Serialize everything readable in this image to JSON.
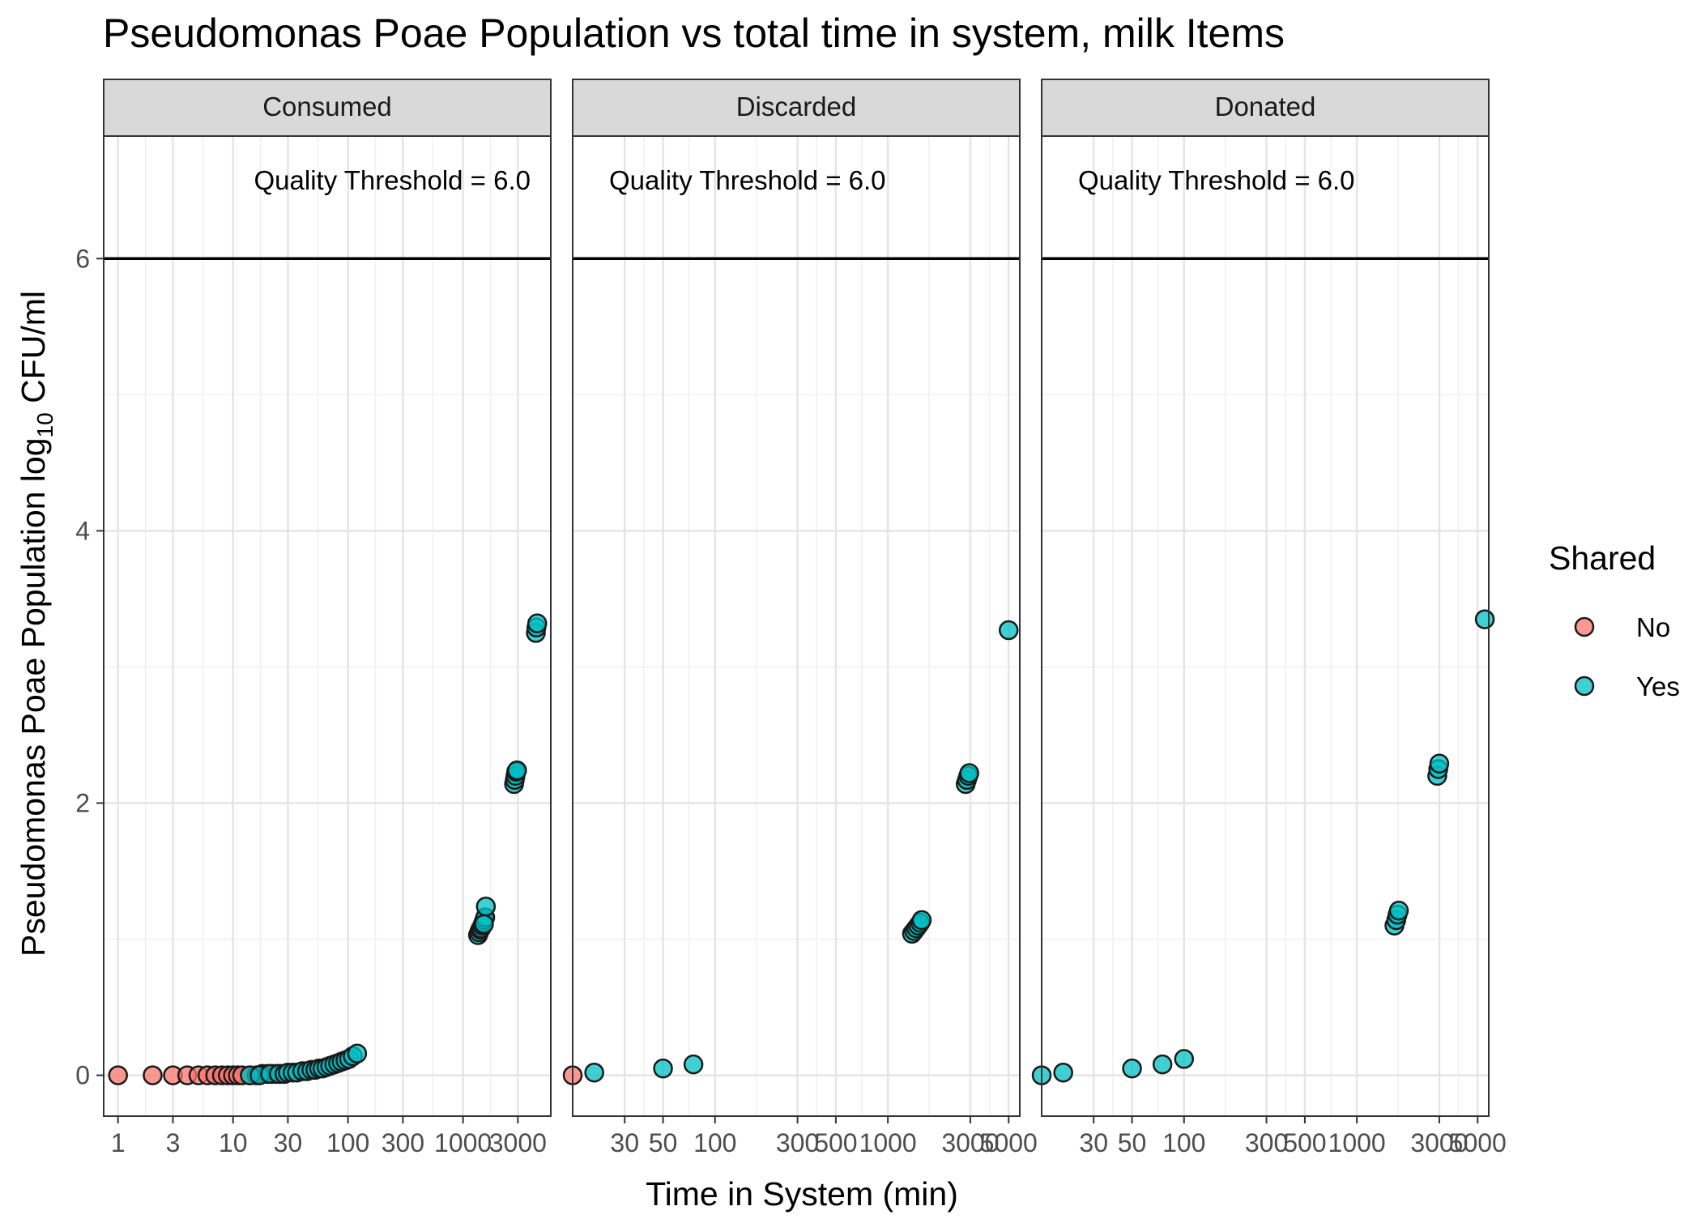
{
  "chart_data": {
    "type": "scatter",
    "title": "Pseudomonas Poae Population vs total time in system, milk Items",
    "xlabel": "Time in System (min)",
    "ylabel_main": "Pseudomonas Poae Population log",
    "ylabel_sub": "10",
    "ylabel_tail": " CFU/ml",
    "x_scale": "log10",
    "ylim": [
      -0.3,
      6.9
    ],
    "y_ticks": [
      0,
      2,
      4,
      6
    ],
    "grid": true,
    "legend": {
      "title": "Shared",
      "placement": "right",
      "entries": [
        {
          "label": "No",
          "color": "#F8766D"
        },
        {
          "label": "Yes",
          "color": "#00BFC4"
        }
      ]
    },
    "threshold": {
      "y": 6,
      "label": "Quality Threshold = 6.0",
      "color": "#000000"
    },
    "panels": [
      {
        "name": "Consumed",
        "xlim": [
          0.75,
          5800
        ],
        "x_ticks": [
          1,
          3,
          10,
          30,
          100,
          300,
          1000,
          3000
        ],
        "x_tick_labels": [
          "1",
          "3",
          "10",
          "30",
          "100",
          "300",
          "1000",
          "3000"
        ],
        "threshold_label_align": "right",
        "points": [
          {
            "x": 1,
            "y": 0.0,
            "shared": "No"
          },
          {
            "x": 2,
            "y": 0.0,
            "shared": "No"
          },
          {
            "x": 3,
            "y": 0.0,
            "shared": "No"
          },
          {
            "x": 4,
            "y": 0.0,
            "shared": "No"
          },
          {
            "x": 5,
            "y": 0.0,
            "shared": "No"
          },
          {
            "x": 6,
            "y": 0.0,
            "shared": "No"
          },
          {
            "x": 7,
            "y": 0.0,
            "shared": "No"
          },
          {
            "x": 8,
            "y": 0.0,
            "shared": "No"
          },
          {
            "x": 9,
            "y": 0.0,
            "shared": "No"
          },
          {
            "x": 10,
            "y": 0.0,
            "shared": "No"
          },
          {
            "x": 11,
            "y": 0.0,
            "shared": "No"
          },
          {
            "x": 12,
            "y": 0.0,
            "shared": "No"
          },
          {
            "x": 14,
            "y": 0.0,
            "shared": "No"
          },
          {
            "x": 16,
            "y": 0.0,
            "shared": "No"
          },
          {
            "x": 18,
            "y": 0.01,
            "shared": "No"
          },
          {
            "x": 20,
            "y": 0.01,
            "shared": "No"
          },
          {
            "x": 22,
            "y": 0.01,
            "shared": "No"
          },
          {
            "x": 24,
            "y": 0.01,
            "shared": "No"
          },
          {
            "x": 26,
            "y": 0.01,
            "shared": "No"
          },
          {
            "x": 14,
            "y": 0.0,
            "shared": "Yes"
          },
          {
            "x": 17,
            "y": 0.0,
            "shared": "Yes"
          },
          {
            "x": 21,
            "y": 0.01,
            "shared": "Yes"
          },
          {
            "x": 25,
            "y": 0.01,
            "shared": "Yes"
          },
          {
            "x": 28,
            "y": 0.01,
            "shared": "Yes"
          },
          {
            "x": 30,
            "y": 0.02,
            "shared": "Yes"
          },
          {
            "x": 33,
            "y": 0.02,
            "shared": "Yes"
          },
          {
            "x": 36,
            "y": 0.02,
            "shared": "Yes"
          },
          {
            "x": 40,
            "y": 0.03,
            "shared": "Yes"
          },
          {
            "x": 44,
            "y": 0.03,
            "shared": "Yes"
          },
          {
            "x": 48,
            "y": 0.04,
            "shared": "Yes"
          },
          {
            "x": 52,
            "y": 0.04,
            "shared": "Yes"
          },
          {
            "x": 56,
            "y": 0.05,
            "shared": "Yes"
          },
          {
            "x": 60,
            "y": 0.05,
            "shared": "Yes"
          },
          {
            "x": 65,
            "y": 0.06,
            "shared": "Yes"
          },
          {
            "x": 70,
            "y": 0.07,
            "shared": "Yes"
          },
          {
            "x": 76,
            "y": 0.08,
            "shared": "Yes"
          },
          {
            "x": 82,
            "y": 0.09,
            "shared": "Yes"
          },
          {
            "x": 88,
            "y": 0.1,
            "shared": "Yes"
          },
          {
            "x": 95,
            "y": 0.11,
            "shared": "Yes"
          },
          {
            "x": 102,
            "y": 0.12,
            "shared": "Yes"
          },
          {
            "x": 110,
            "y": 0.14,
            "shared": "Yes"
          },
          {
            "x": 120,
            "y": 0.16,
            "shared": "Yes"
          },
          {
            "x": 1350,
            "y": 1.03,
            "shared": "Yes"
          },
          {
            "x": 1380,
            "y": 1.05,
            "shared": "Yes"
          },
          {
            "x": 1410,
            "y": 1.07,
            "shared": "Yes"
          },
          {
            "x": 1440,
            "y": 1.08,
            "shared": "Yes"
          },
          {
            "x": 1470,
            "y": 1.1,
            "shared": "Yes"
          },
          {
            "x": 1500,
            "y": 1.12,
            "shared": "Yes"
          },
          {
            "x": 1530,
            "y": 1.14,
            "shared": "Yes"
          },
          {
            "x": 1560,
            "y": 1.16,
            "shared": "Yes"
          },
          {
            "x": 1580,
            "y": 1.24,
            "shared": "Yes"
          },
          {
            "x": 1520,
            "y": 1.11,
            "shared": "Yes"
          },
          {
            "x": 2780,
            "y": 2.14,
            "shared": "Yes"
          },
          {
            "x": 2820,
            "y": 2.17,
            "shared": "Yes"
          },
          {
            "x": 2860,
            "y": 2.2,
            "shared": "Yes"
          },
          {
            "x": 2900,
            "y": 2.23,
            "shared": "Yes"
          },
          {
            "x": 2950,
            "y": 2.24,
            "shared": "Yes"
          },
          {
            "x": 4300,
            "y": 3.25,
            "shared": "Yes"
          },
          {
            "x": 4350,
            "y": 3.29,
            "shared": "Yes"
          },
          {
            "x": 4420,
            "y": 3.32,
            "shared": "Yes"
          }
        ]
      },
      {
        "name": "Discarded",
        "xlim": [
          15,
          5800
        ],
        "x_ticks": [
          30,
          50,
          100,
          300,
          500,
          1000,
          3000,
          5000
        ],
        "x_tick_labels": [
          "30",
          "50",
          "100",
          "300",
          "500",
          "1000",
          "3000",
          "5000"
        ],
        "threshold_label_align": "left",
        "points": [
          {
            "x": 15,
            "y": 0.0,
            "shared": "No"
          },
          {
            "x": 20,
            "y": 0.02,
            "shared": "Yes"
          },
          {
            "x": 50,
            "y": 0.05,
            "shared": "Yes"
          },
          {
            "x": 75,
            "y": 0.08,
            "shared": "Yes"
          },
          {
            "x": 1380,
            "y": 1.04,
            "shared": "Yes"
          },
          {
            "x": 1420,
            "y": 1.06,
            "shared": "Yes"
          },
          {
            "x": 1460,
            "y": 1.08,
            "shared": "Yes"
          },
          {
            "x": 1500,
            "y": 1.1,
            "shared": "Yes"
          },
          {
            "x": 1540,
            "y": 1.12,
            "shared": "Yes"
          },
          {
            "x": 1570,
            "y": 1.14,
            "shared": "Yes"
          },
          {
            "x": 2820,
            "y": 2.14,
            "shared": "Yes"
          },
          {
            "x": 2870,
            "y": 2.17,
            "shared": "Yes"
          },
          {
            "x": 2920,
            "y": 2.2,
            "shared": "Yes"
          },
          {
            "x": 2960,
            "y": 2.22,
            "shared": "Yes"
          },
          {
            "x": 5000,
            "y": 3.27,
            "shared": "Yes"
          }
        ]
      },
      {
        "name": "Donated",
        "xlim": [
          15,
          5800
        ],
        "x_ticks": [
          30,
          50,
          100,
          300,
          500,
          1000,
          3000,
          5000
        ],
        "x_tick_labels": [
          "30",
          "50",
          "100",
          "300",
          "500",
          "1000",
          "3000",
          "5000"
        ],
        "threshold_label_align": "left",
        "points": [
          {
            "x": 15,
            "y": 0.0,
            "shared": "Yes"
          },
          {
            "x": 20,
            "y": 0.02,
            "shared": "Yes"
          },
          {
            "x": 50,
            "y": 0.05,
            "shared": "Yes"
          },
          {
            "x": 75,
            "y": 0.08,
            "shared": "Yes"
          },
          {
            "x": 100,
            "y": 0.12,
            "shared": "Yes"
          },
          {
            "x": 1650,
            "y": 1.1,
            "shared": "Yes"
          },
          {
            "x": 1690,
            "y": 1.14,
            "shared": "Yes"
          },
          {
            "x": 1720,
            "y": 1.18,
            "shared": "Yes"
          },
          {
            "x": 1750,
            "y": 1.21,
            "shared": "Yes"
          },
          {
            "x": 2920,
            "y": 2.2,
            "shared": "Yes"
          },
          {
            "x": 2960,
            "y": 2.25,
            "shared": "Yes"
          },
          {
            "x": 3000,
            "y": 2.29,
            "shared": "Yes"
          },
          {
            "x": 5500,
            "y": 3.35,
            "shared": "Yes"
          }
        ]
      }
    ]
  }
}
